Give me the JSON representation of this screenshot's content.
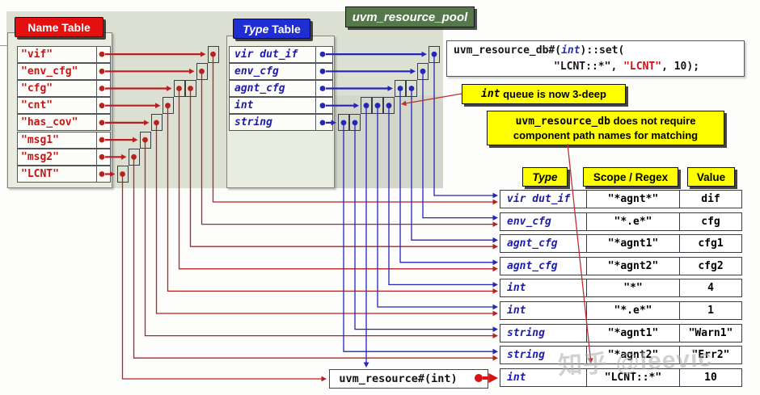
{
  "pool_label": "uvm_resource_pool",
  "name_table": {
    "title": "Name Table",
    "entries": [
      "\"vif\"",
      "\"env_cfg\"",
      "\"cfg\"",
      "\"cnt\"",
      "\"has_cov\"",
      "\"msg1\"",
      "\"msg2\"",
      "\"LCNT\""
    ],
    "queue_sizes": [
      1,
      1,
      2,
      1,
      1,
      1,
      1,
      1
    ]
  },
  "type_table": {
    "title_em": "Type",
    "title_rest": " Table",
    "entries": [
      "vir dut_if",
      "env_cfg",
      "agnt_cfg",
      "int",
      "string"
    ],
    "queue_sizes": [
      1,
      1,
      2,
      3,
      2
    ]
  },
  "code_box": {
    "l1_pre": "uvm_resource_db#(",
    "l1_type": "int",
    "l1_post": ")::set(",
    "l2_pre": "\"LCNT::*\", ",
    "l2_name": "\"LCNT\"",
    "l2_post": ", 10);"
  },
  "callout_queue": {
    "keyword": "int",
    "text": " queue is now 3-deep"
  },
  "callout_db": {
    "keyword": "uvm_resource_db",
    "line1_rest": " does not require",
    "line2": "component path names for matching"
  },
  "resource_table": {
    "headers": [
      "Type",
      "Scope / Regex",
      "Value"
    ],
    "rows": [
      {
        "type": "vir dut_if",
        "scope": "\"*agnt*\"",
        "value": "dif"
      },
      {
        "type": "env_cfg",
        "scope": "\"*.e*\"",
        "value": "cfg"
      },
      {
        "type": "agnt_cfg",
        "scope": "\"*agnt1\"",
        "value": "cfg1"
      },
      {
        "type": "agnt_cfg",
        "scope": "\"*agnt2\"",
        "value": "cfg2"
      },
      {
        "type": "int",
        "scope": "\"*\"",
        "value": "4"
      },
      {
        "type": "int",
        "scope": "\"*.e*\"",
        "value": "1"
      },
      {
        "type": "string",
        "scope": "\"*agnt1\"",
        "value": "\"Warn1\""
      },
      {
        "type": "string",
        "scope": "\"*agnt2\"",
        "value": "\"Err2\""
      },
      {
        "type": "int",
        "scope": "\"LCNT::*\"",
        "value": "10"
      }
    ]
  },
  "resource_box": {
    "label": "uvm_resource#(int)"
  },
  "watermark": "知乎 @leevic",
  "connections": {
    "name_to_resource_row": [
      [
        "\"vif\"",
        1
      ],
      [
        "\"env_cfg\"",
        2
      ],
      [
        "\"cfg\"",
        3
      ],
      [
        "\"cfg\"",
        4
      ],
      [
        "\"cnt\"",
        5
      ],
      [
        "\"has_cov\"",
        6
      ],
      [
        "\"msg1\"",
        7
      ],
      [
        "\"msg2\"",
        8
      ],
      [
        "\"LCNT\"",
        "resource_box"
      ]
    ],
    "type_to_resource_row": [
      [
        "vir dut_if",
        1
      ],
      [
        "env_cfg",
        2
      ],
      [
        "agnt_cfg",
        3
      ],
      [
        "agnt_cfg",
        4
      ],
      [
        "int",
        5
      ],
      [
        "int",
        6
      ],
      [
        "int",
        "resource_box"
      ],
      [
        "string",
        7
      ],
      [
        "string",
        8
      ]
    ],
    "resource_box_to_row": 9
  },
  "colors": {
    "red_accent": "#c81414",
    "blue_accent": "#2525b8",
    "panel_green": "#dbe0d2",
    "label_green": "#547849",
    "callout_yellow": "#ffff00",
    "header_red": "#e41010",
    "header_blue": "#1e2ed2"
  }
}
